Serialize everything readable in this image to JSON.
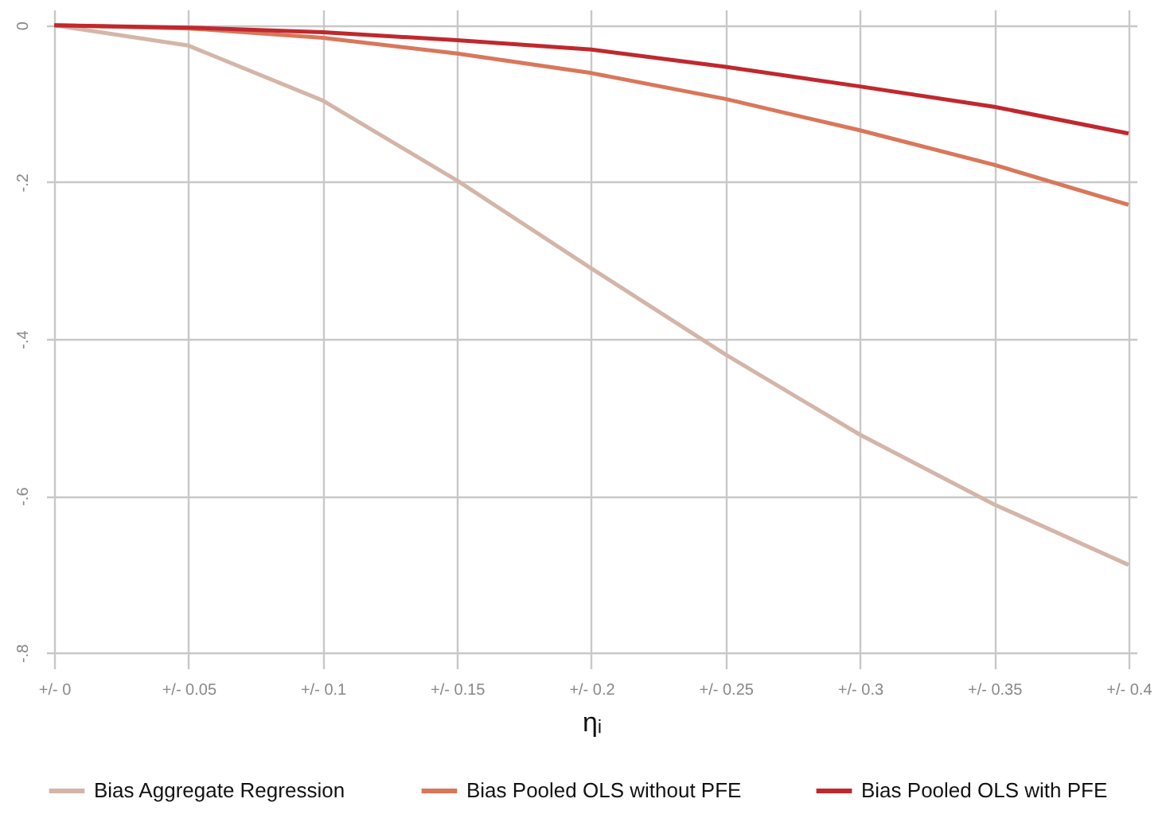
{
  "chart_data": {
    "type": "line",
    "xlabel": "ηᵢ",
    "categories": [
      "+/- 0",
      "+/- 0.05",
      "+/- 0.1",
      "+/- 0.15",
      "+/- 0.2",
      "+/- 0.25",
      "+/- 0.3",
      "+/- 0.35",
      "+/- 0.4"
    ],
    "series": [
      {
        "name": "Bias Aggregate Regression",
        "color": "#d4b5a8",
        "values": [
          0,
          -0.026,
          -0.096,
          -0.198,
          -0.31,
          -0.42,
          -0.522,
          -0.611,
          -0.688
        ]
      },
      {
        "name": "Bias Pooled OLS without PFE",
        "color": "#d9775a",
        "values": [
          0,
          -0.004,
          -0.016,
          -0.036,
          -0.061,
          -0.094,
          -0.134,
          -0.178,
          -0.229
        ]
      },
      {
        "name": "Bias Pooled OLS with PFE",
        "color": "#c0282e",
        "values": [
          0,
          -0.003,
          -0.009,
          -0.019,
          -0.031,
          -0.053,
          -0.078,
          -0.104,
          -0.138
        ]
      }
    ],
    "ylim": [
      -0.82,
      0.02
    ],
    "yticks": [
      {
        "value": 0,
        "label": "0"
      },
      {
        "value": -0.2,
        "label": "-.2"
      },
      {
        "value": -0.4,
        "label": "-.4"
      },
      {
        "value": -0.6,
        "label": "-.6"
      },
      {
        "value": -0.8,
        "label": "-.8"
      }
    ],
    "grid": true,
    "legend": "bottom",
    "marker": "none",
    "line_style": "solid"
  }
}
